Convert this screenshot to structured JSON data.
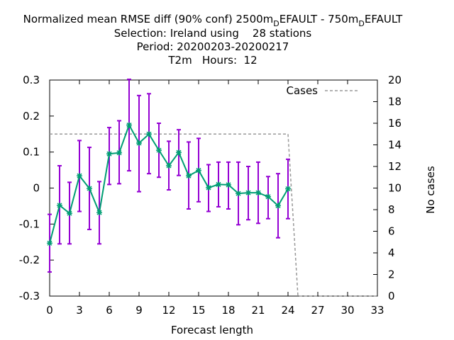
{
  "chart_data": {
    "type": "line",
    "title_lines": [
      "Normalized mean RMSE diff (90% conf) 2500m_DEFAULT - 750m_DEFAULT",
      "Selection: Ireland using    28 stations",
      "Period: 20200203-20200217",
      "T2m   Hours:  12"
    ],
    "title_main": {
      "pre": "Normalized mean RMSE diff (90% conf) 2500m",
      "sub1": "D",
      "mid": "EFAULT - 750m",
      "sub2": "D",
      "post": "EFAULT"
    },
    "xlabel": "Forecast length",
    "ylabel": "",
    "y2label": "No cases",
    "xlim": [
      0,
      33
    ],
    "ylim": [
      -0.3,
      0.3
    ],
    "y2lim": [
      0,
      20
    ],
    "x_ticks": [
      "0",
      "3",
      "6",
      "9",
      "12",
      "15",
      "18",
      "21",
      "24",
      "27",
      "30",
      "33"
    ],
    "y_ticks": [
      "-0.3",
      "-0.2",
      "-0.1",
      "0",
      "0.1",
      "0.2",
      "0.3"
    ],
    "y2_ticks": [
      "0",
      "2",
      "4",
      "6",
      "8",
      "10",
      "12",
      "14",
      "16",
      "18",
      "20"
    ],
    "legend": {
      "position": "top-right",
      "label": "Cases"
    },
    "grid": false,
    "colors": {
      "line": "#009e73",
      "marker": "#009e73",
      "errorbar": "#9400d3",
      "cases": "#999999"
    },
    "series": [
      {
        "x": [
          0,
          1,
          2,
          3,
          4,
          5,
          6,
          7,
          8,
          9,
          10,
          11,
          12,
          13,
          14,
          15,
          16,
          17,
          18,
          19,
          20,
          21,
          22,
          23,
          24
        ],
        "values": [
          -0.153,
          -0.048,
          -0.07,
          0.034,
          -0.001,
          -0.068,
          0.095,
          0.098,
          0.175,
          0.125,
          0.15,
          0.105,
          0.062,
          0.099,
          0.034,
          0.049,
          0.001,
          0.01,
          0.009,
          -0.015,
          -0.013,
          -0.013,
          -0.024,
          -0.049,
          -0.002
        ],
        "lower": [
          -0.233,
          -0.155,
          -0.155,
          -0.065,
          -0.115,
          -0.155,
          0.01,
          0.012,
          0.048,
          -0.01,
          0.04,
          0.03,
          -0.005,
          0.035,
          -0.058,
          -0.038,
          -0.065,
          -0.052,
          -0.058,
          -0.102,
          -0.088,
          -0.098,
          -0.085,
          -0.138,
          -0.085
        ]
      }
    ],
    "upper": [
      -0.073,
      0.062,
      0.016,
      0.132,
      0.113,
      0.018,
      0.168,
      0.187,
      0.302,
      0.257,
      0.262,
      0.18,
      0.13,
      0.162,
      0.128,
      0.138,
      0.065,
      0.072,
      0.072,
      0.072,
      0.06,
      0.072,
      0.032,
      0.04,
      0.08
    ],
    "cases": {
      "x": [
        0,
        1,
        2,
        3,
        4,
        5,
        6,
        7,
        8,
        9,
        10,
        11,
        12,
        13,
        14,
        15,
        16,
        17,
        18,
        19,
        20,
        21,
        22,
        23,
        24,
        25,
        26,
        27,
        28,
        29,
        30,
        31,
        32,
        33
      ],
      "values": [
        15,
        15,
        15,
        15,
        15,
        15,
        15,
        15,
        15,
        15,
        15,
        15,
        15,
        15,
        15,
        15,
        15,
        15,
        15,
        15,
        15,
        15,
        15,
        15,
        15,
        0,
        0,
        0,
        0,
        0,
        0,
        0,
        0,
        0
      ]
    }
  }
}
